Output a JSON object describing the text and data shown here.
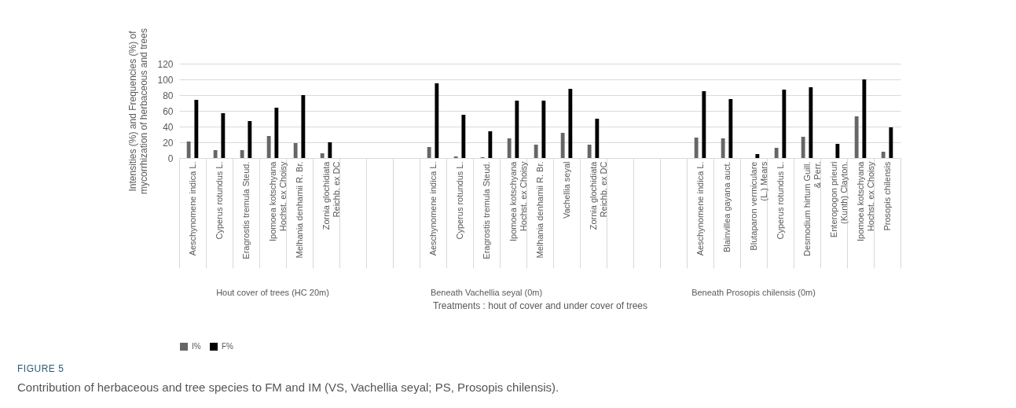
{
  "chart_data": {
    "type": "bar",
    "ylabel": "Intensities (%) and Frequencies (%) of mycorrhization of herbaceous and  trees",
    "xlabel": "Treatments : hout of cover and under cover of trees",
    "categories": [
      "Aeschynomene indica L.",
      "Cyperus rotundus L.",
      "Eragrostis tremula Steud.",
      "Ipomoea kotschyana Hochst. ex Choisy",
      "Melhania denhamii R. Br.",
      "Zornia glochidiata Reichb. ex DC",
      null,
      null,
      null,
      "Aeschynomene indica L.",
      "Cyperus rotundus L.",
      "Eragrostis tremula Steud.",
      "Ipomoea kotschyana Hochst. ex Choisy",
      "Melhania denhamii R. Br.",
      "Vachellia seyal",
      "Zornia glochidiata Reichb. ex DC",
      null,
      null,
      null,
      "Aeschynomene indica L.",
      "Blainvillea gayana auct.",
      "Blutaparon vermiculare (L.) Mears",
      "Cyperus rotundus L.",
      "Desmodium hirtum Guill. & Perr.",
      "Enteropogon prieuri (Kunth) Clayton.",
      "Ipomoea kotschyana Hochst. ex Choisy",
      "Prosopis chilensis"
    ],
    "series": [
      {
        "name": "I%",
        "color": "#666666",
        "values": [
          21,
          10,
          10,
          28,
          19,
          6,
          null,
          null,
          null,
          14,
          2,
          1,
          25,
          17,
          32,
          17,
          null,
          null,
          null,
          26,
          25,
          0,
          13,
          27,
          0,
          53,
          8
        ]
      },
      {
        "name": "F%",
        "color": "#000000",
        "values": [
          74,
          57,
          47,
          64,
          80,
          20,
          null,
          null,
          null,
          95,
          55,
          34,
          73,
          73,
          88,
          50,
          null,
          null,
          null,
          85,
          75,
          5,
          87,
          90,
          18,
          100,
          39
        ]
      }
    ],
    "ylim": [
      0,
      120
    ],
    "yticks": [
      0,
      20,
      40,
      60,
      80,
      100,
      120
    ],
    "grid": "y",
    "legend": "bottom",
    "annotations": [
      "Hout cover of trees (HC 20m)",
      "Beneath Vachellia seyal (0m)",
      "Beneath Prosopis chilensis (0m)",
      "FIGURE 5",
      "Contribution of herbaceous and tree species to FM and IM (VS, Vachellia seyal; PS, Prosopis chilensis)."
    ]
  }
}
